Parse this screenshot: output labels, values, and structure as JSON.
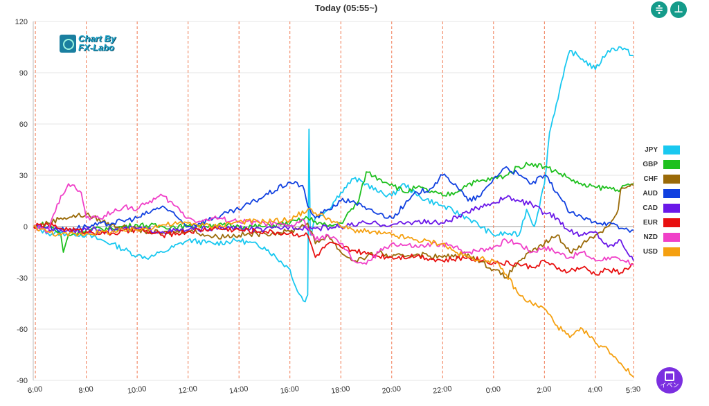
{
  "header": {
    "title": "Today  (05:55~)",
    "controls": [
      {
        "icon": "collapse-vertical-icon",
        "glyph": "≑"
      },
      {
        "icon": "expand-vertical-icon",
        "glyph": "⊥"
      }
    ]
  },
  "logo": {
    "line1": "Chart By",
    "line2": "FX-Labo"
  },
  "event_button": {
    "label": "イベン",
    "icon": "calendar-icon"
  },
  "chart_data": {
    "type": "line",
    "ylim": [
      -90,
      120
    ],
    "y_ticks": [
      120,
      90,
      60,
      30,
      0,
      -30,
      -60,
      -90
    ],
    "x_range": [
      5.916,
      29.5
    ],
    "x_ticks": [
      {
        "label": "6:00",
        "x": 6
      },
      {
        "label": "8:00",
        "x": 8
      },
      {
        "label": "10:00",
        "x": 10
      },
      {
        "label": "12:00",
        "x": 12
      },
      {
        "label": "14:00",
        "x": 14
      },
      {
        "label": "16:00",
        "x": 16
      },
      {
        "label": "18:00",
        "x": 18
      },
      {
        "label": "20:00",
        "x": 20
      },
      {
        "label": "22:00",
        "x": 22
      },
      {
        "label": "0:00",
        "x": 24
      },
      {
        "label": "2:00",
        "x": 26
      },
      {
        "label": "4:00",
        "x": 28
      },
      {
        "label": "5:30",
        "x": 29.5
      }
    ],
    "series": [
      {
        "name": "JPY",
        "color": "#19c8f0",
        "points": [
          [
            5.92,
            0
          ],
          [
            6.5,
            -4
          ],
          [
            7.5,
            -4
          ],
          [
            8,
            -5
          ],
          [
            9,
            -10
          ],
          [
            10,
            -17
          ],
          [
            10.5,
            -18
          ],
          [
            11,
            -15
          ],
          [
            12,
            -8
          ],
          [
            13,
            -10
          ],
          [
            14,
            -8
          ],
          [
            15,
            -12
          ],
          [
            16,
            -25
          ],
          [
            16.3,
            -38
          ],
          [
            16.6,
            -44
          ],
          [
            16.7,
            -40
          ],
          [
            16.75,
            57
          ],
          [
            16.8,
            -5
          ],
          [
            17,
            5
          ],
          [
            17.5,
            10
          ],
          [
            18,
            20
          ],
          [
            18.5,
            28
          ],
          [
            19,
            25
          ],
          [
            19.5,
            20
          ],
          [
            20,
            18
          ],
          [
            20.5,
            25
          ],
          [
            21,
            18
          ],
          [
            22,
            12
          ],
          [
            23,
            5
          ],
          [
            24,
            -5
          ],
          [
            24.5,
            -4
          ],
          [
            25,
            -5
          ],
          [
            25.3,
            10
          ],
          [
            25.6,
            0
          ],
          [
            26,
            25
          ],
          [
            26.2,
            55
          ],
          [
            26.6,
            80
          ],
          [
            27,
            103
          ],
          [
            27.5,
            98
          ],
          [
            28,
            92
          ],
          [
            28.5,
            103
          ],
          [
            29,
            105
          ],
          [
            29.5,
            100
          ]
        ]
      },
      {
        "name": "GBP",
        "color": "#1ec01e",
        "points": [
          [
            5.92,
            0
          ],
          [
            6.5,
            2
          ],
          [
            7,
            -5
          ],
          [
            7.1,
            -15
          ],
          [
            7.3,
            -5
          ],
          [
            8,
            -2
          ],
          [
            9,
            -1
          ],
          [
            10,
            1
          ],
          [
            11,
            0
          ],
          [
            12,
            0
          ],
          [
            13,
            1
          ],
          [
            14,
            0
          ],
          [
            15,
            0
          ],
          [
            16,
            2
          ],
          [
            16.7,
            5
          ],
          [
            17,
            3
          ],
          [
            17.5,
            0
          ],
          [
            18,
            2
          ],
          [
            18.7,
            15
          ],
          [
            19,
            32
          ],
          [
            19.5,
            28
          ],
          [
            20,
            25
          ],
          [
            20.5,
            20
          ],
          [
            21,
            23
          ],
          [
            22,
            18
          ],
          [
            22.5,
            20
          ],
          [
            23,
            25
          ],
          [
            24,
            28
          ],
          [
            24.5,
            30
          ],
          [
            25,
            35
          ],
          [
            25.5,
            37
          ],
          [
            26,
            35
          ],
          [
            26.5,
            32
          ],
          [
            27,
            28
          ],
          [
            27.5,
            24
          ],
          [
            28,
            23
          ],
          [
            29,
            22
          ],
          [
            29.5,
            25
          ]
        ]
      },
      {
        "name": "CHF",
        "color": "#9a6a08",
        "points": [
          [
            5.92,
            0
          ],
          [
            6.5,
            2
          ],
          [
            7,
            5
          ],
          [
            8,
            7
          ],
          [
            9,
            1
          ],
          [
            10,
            -2
          ],
          [
            11,
            -4
          ],
          [
            12,
            -2
          ],
          [
            13,
            -6
          ],
          [
            14,
            -5
          ],
          [
            15,
            -4
          ],
          [
            16,
            -3
          ],
          [
            16.7,
            2
          ],
          [
            17,
            -10
          ],
          [
            17.5,
            -5
          ],
          [
            18,
            -15
          ],
          [
            18.5,
            -20
          ],
          [
            19,
            -18
          ],
          [
            19.5,
            -15
          ],
          [
            20,
            -18
          ],
          [
            21,
            -16
          ],
          [
            22,
            -18
          ],
          [
            23,
            -16
          ],
          [
            24,
            -25
          ],
          [
            24.5,
            -30
          ],
          [
            25,
            -20
          ],
          [
            25.5,
            -15
          ],
          [
            26,
            -10
          ],
          [
            26.5,
            -5
          ],
          [
            27,
            -15
          ],
          [
            27.5,
            -10
          ],
          [
            28,
            -5
          ],
          [
            28.5,
            0
          ],
          [
            28.9,
            10
          ],
          [
            29,
            22
          ],
          [
            29.5,
            24
          ]
        ]
      },
      {
        "name": "AUD",
        "color": "#1040e0",
        "points": [
          [
            5.92,
            0
          ],
          [
            6.5,
            0
          ],
          [
            7,
            -2
          ],
          [
            8,
            0
          ],
          [
            9,
            2
          ],
          [
            10,
            5
          ],
          [
            11,
            12
          ],
          [
            12,
            0
          ],
          [
            13,
            5
          ],
          [
            14,
            10
          ],
          [
            15,
            18
          ],
          [
            16,
            26
          ],
          [
            16.5,
            24
          ],
          [
            16.7,
            12
          ],
          [
            17,
            5
          ],
          [
            17.5,
            10
          ],
          [
            18,
            15
          ],
          [
            18.5,
            15
          ],
          [
            19,
            10
          ],
          [
            20,
            5
          ],
          [
            21,
            20
          ],
          [
            21.5,
            22
          ],
          [
            22,
            30
          ],
          [
            22.5,
            25
          ],
          [
            23,
            15
          ],
          [
            23.5,
            18
          ],
          [
            24,
            28
          ],
          [
            24.5,
            35
          ],
          [
            25,
            30
          ],
          [
            25.5,
            25
          ],
          [
            26,
            30
          ],
          [
            26.5,
            20
          ],
          [
            27,
            8
          ],
          [
            27.5,
            5
          ],
          [
            28,
            3
          ],
          [
            28.5,
            2
          ],
          [
            29,
            -1
          ],
          [
            29.5,
            -2
          ]
        ]
      },
      {
        "name": "CAD",
        "color": "#6a18e8",
        "points": [
          [
            5.92,
            0
          ],
          [
            7,
            -2
          ],
          [
            8,
            -2
          ],
          [
            9,
            -2
          ],
          [
            10,
            -1
          ],
          [
            11,
            -3
          ],
          [
            12,
            -2
          ],
          [
            13,
            -1
          ],
          [
            14,
            -1
          ],
          [
            15,
            -2
          ],
          [
            16,
            0
          ],
          [
            17,
            -1
          ],
          [
            18,
            0
          ],
          [
            19,
            2
          ],
          [
            20,
            1
          ],
          [
            21,
            3
          ],
          [
            22,
            2
          ],
          [
            23,
            8
          ],
          [
            23.5,
            12
          ],
          [
            24,
            14
          ],
          [
            24.5,
            17
          ],
          [
            25,
            15
          ],
          [
            25.5,
            13
          ],
          [
            26,
            8
          ],
          [
            26.5,
            5
          ],
          [
            27,
            -3
          ],
          [
            27.5,
            -5
          ],
          [
            28,
            -3
          ],
          [
            28.5,
            -12
          ],
          [
            29,
            -8
          ],
          [
            29.5,
            -20
          ]
        ]
      },
      {
        "name": "EUR",
        "color": "#e81010",
        "points": [
          [
            5.92,
            0
          ],
          [
            6.5,
            1
          ],
          [
            7,
            -1
          ],
          [
            8,
            -3
          ],
          [
            9,
            -4
          ],
          [
            10,
            -2
          ],
          [
            11,
            -5
          ],
          [
            12,
            -3
          ],
          [
            13,
            -1
          ],
          [
            14,
            -2
          ],
          [
            15,
            -3
          ],
          [
            16,
            -4
          ],
          [
            16.7,
            -5
          ],
          [
            17,
            -18
          ],
          [
            17.5,
            -10
          ],
          [
            18,
            -12
          ],
          [
            18.5,
            -14
          ],
          [
            19,
            -16
          ],
          [
            20,
            -18
          ],
          [
            21,
            -17
          ],
          [
            22,
            -20
          ],
          [
            23,
            -18
          ],
          [
            24,
            -21
          ],
          [
            25,
            -22
          ],
          [
            25.5,
            -24
          ],
          [
            26,
            -20
          ],
          [
            26.5,
            -25
          ],
          [
            27,
            -26
          ],
          [
            27.5,
            -24
          ],
          [
            28,
            -28
          ],
          [
            28.5,
            -25
          ],
          [
            29,
            -27
          ],
          [
            29.5,
            -22
          ]
        ]
      },
      {
        "name": "NZD",
        "color": "#f040c8",
        "points": [
          [
            5.92,
            0
          ],
          [
            6.5,
            -3
          ],
          [
            7,
            18
          ],
          [
            7.3,
            25
          ],
          [
            7.6,
            22
          ],
          [
            7.8,
            20
          ],
          [
            8,
            5
          ],
          [
            8.5,
            5
          ],
          [
            9,
            8
          ],
          [
            9.5,
            12
          ],
          [
            10,
            10
          ],
          [
            10.5,
            15
          ],
          [
            11,
            18
          ],
          [
            11.5,
            12
          ],
          [
            12,
            5
          ],
          [
            12.5,
            3
          ],
          [
            13,
            5
          ],
          [
            14,
            3
          ],
          [
            15,
            2
          ],
          [
            16,
            0
          ],
          [
            16.5,
            4
          ],
          [
            17,
            -8
          ],
          [
            17.5,
            -5
          ],
          [
            18,
            -10
          ],
          [
            18.5,
            -20
          ],
          [
            19,
            -22
          ],
          [
            19.5,
            -15
          ],
          [
            20,
            -10
          ],
          [
            21,
            -12
          ],
          [
            22,
            -10
          ],
          [
            23,
            -15
          ],
          [
            24,
            -12
          ],
          [
            24.5,
            -8
          ],
          [
            25,
            -10
          ],
          [
            25.5,
            -15
          ],
          [
            26,
            -12
          ],
          [
            26.5,
            -15
          ],
          [
            27,
            -18
          ],
          [
            27.5,
            -15
          ],
          [
            28,
            -20
          ],
          [
            28.5,
            -18
          ],
          [
            29,
            -20
          ],
          [
            29.5,
            -22
          ]
        ]
      },
      {
        "name": "USD",
        "color": "#f5a010",
        "points": [
          [
            5.92,
            0
          ],
          [
            6.5,
            -3
          ],
          [
            7,
            -5
          ],
          [
            8,
            -4
          ],
          [
            9,
            -3
          ],
          [
            10,
            -2
          ],
          [
            11,
            1
          ],
          [
            12,
            2
          ],
          [
            13,
            0
          ],
          [
            14,
            3
          ],
          [
            15,
            3
          ],
          [
            16,
            4
          ],
          [
            16.7,
            10
          ],
          [
            17,
            8
          ],
          [
            17.5,
            5
          ],
          [
            18,
            0
          ],
          [
            18.5,
            -2
          ],
          [
            19,
            -3
          ],
          [
            20,
            -5
          ],
          [
            21,
            -8
          ],
          [
            22,
            -10
          ],
          [
            22.5,
            -15
          ],
          [
            23,
            -18
          ],
          [
            24,
            -20
          ],
          [
            24.5,
            -28
          ],
          [
            25,
            -40
          ],
          [
            25.5,
            -45
          ],
          [
            26,
            -48
          ],
          [
            26.5,
            -58
          ],
          [
            27,
            -65
          ],
          [
            27.5,
            -60
          ],
          [
            28,
            -68
          ],
          [
            28.5,
            -72
          ],
          [
            29,
            -80
          ],
          [
            29.5,
            -88
          ]
        ]
      }
    ]
  }
}
